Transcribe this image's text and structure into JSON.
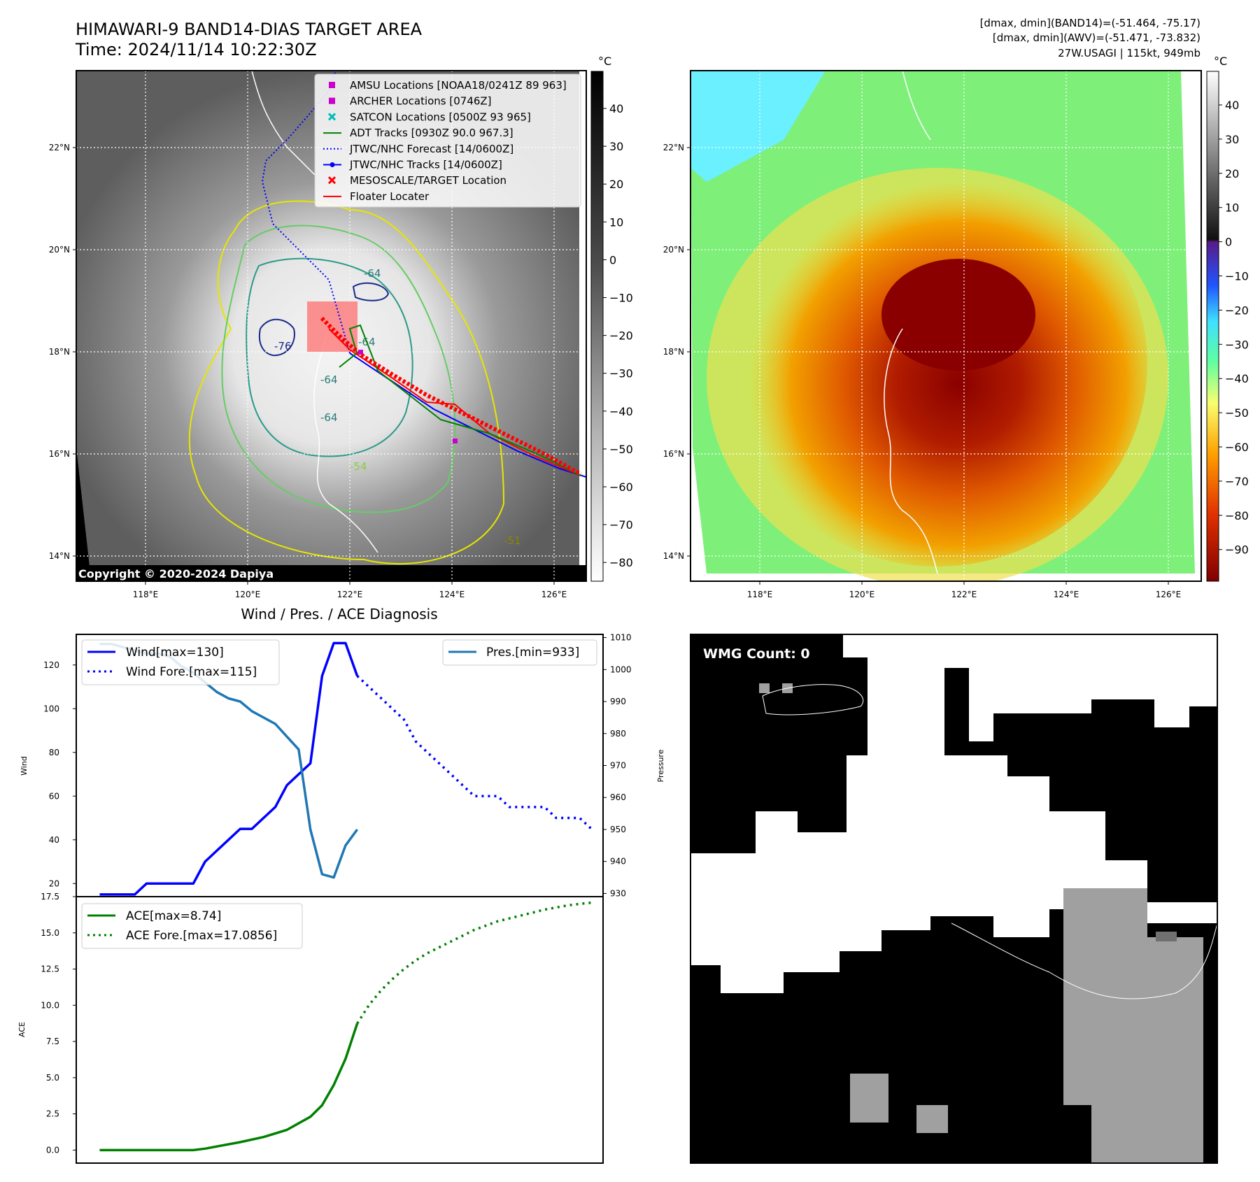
{
  "header": {
    "title": "HIMAWARI-9 BAND14-DIAS TARGET AREA",
    "time": "Time: 2024/11/14 10:22:30Z",
    "stats_band14": "[dmax, dmin](BAND14)=(-51.464, -75.17)",
    "stats_awv": "[dmax, dmin](AWV)=(-51.471, -73.832)",
    "storm": "27W.USAGI | 115kt, 949mb"
  },
  "map": {
    "lon_ticks": [
      "118°E",
      "120°E",
      "122°E",
      "124°E",
      "126°E"
    ],
    "lat_ticks": [
      "22°N",
      "20°N",
      "18°N",
      "16°N",
      "14°N"
    ],
    "copyright": "Copyright © 2020-2024 Dapiya",
    "contour_labels": [
      "-64",
      "-64",
      "-64",
      "-64",
      "-76",
      "-54",
      "-51"
    ],
    "legend": [
      {
        "label": "AMSU Locations [NOAA18/0241Z 89 963]",
        "color": "#cc00cc"
      },
      {
        "label": "ARCHER Locations [0746Z]",
        "color": "#cc00cc"
      },
      {
        "label": "SATCON Locations [0500Z 93 965]",
        "color": "#00bbbb"
      },
      {
        "label": "ADT Tracks [0930Z 90.0 967.3]",
        "color": "#008000"
      },
      {
        "label": "JTWC/NHC Forecast [14/0600Z]",
        "color": "#0000ff"
      },
      {
        "label": "JTWC/NHC Tracks [14/0600Z]",
        "color": "#0000ff"
      },
      {
        "label": "MESOSCALE/TARGET Location",
        "color": "#ff0000"
      },
      {
        "label": "Floater Locater",
        "color": "#ff0000"
      }
    ]
  },
  "colorbar_gray": {
    "unit": "°C",
    "ticks": [
      "40",
      "30",
      "20",
      "10",
      "0",
      "−10",
      "−20",
      "−30",
      "−40",
      "−50",
      "−60",
      "−70",
      "−80"
    ]
  },
  "colorbar_color": {
    "unit": "°C",
    "ticks": [
      "40",
      "30",
      "20",
      "10",
      "0",
      "−10",
      "−20",
      "−30",
      "−40",
      "−50",
      "−60",
      "−70",
      "−80",
      "−90"
    ]
  },
  "diagnosis_title": "Wind / Pres. / ACE Diagnosis",
  "wmg": {
    "label": "WMG Count: 0"
  },
  "chart_data": [
    {
      "type": "line",
      "title": "Wind / Pres. / ACE Diagnosis",
      "ylabel": "Wind",
      "y2label": "Pressure",
      "ylim": [
        14,
        134
      ],
      "y2lim": [
        929,
        1011
      ],
      "xlim": [
        -2,
        43
      ],
      "yticks": [
        20,
        40,
        60,
        80,
        100,
        120
      ],
      "y2ticks": [
        930,
        940,
        950,
        960,
        970,
        980,
        990,
        1000,
        1010
      ],
      "series": [
        {
          "name": "Wind[max=130]",
          "color": "#0000ff",
          "style": "solid",
          "x": [
            0,
            2,
            3,
            4,
            5,
            6,
            8,
            9,
            10,
            11,
            12,
            13,
            14,
            15,
            16,
            17,
            18,
            19,
            20,
            21,
            22
          ],
          "y": [
            15,
            15,
            15,
            20,
            20,
            20,
            20,
            30,
            35,
            40,
            45,
            45,
            50,
            55,
            65,
            70,
            75,
            115,
            130,
            130,
            115
          ]
        },
        {
          "name": "Wind Fore.[max=115]",
          "color": "#0000ff",
          "style": "dotted",
          "x": [
            22,
            23,
            24,
            25,
            26,
            27,
            28,
            29,
            30,
            31,
            32,
            33,
            34,
            35,
            36,
            37,
            38,
            39,
            40,
            41,
            42
          ],
          "y": [
            115,
            110,
            105,
            100,
            95,
            85,
            80,
            75,
            70,
            65,
            60,
            60,
            60,
            55,
            55,
            55,
            55,
            50,
            50,
            50,
            45
          ]
        },
        {
          "name": "Pres.[min=933]",
          "color": "#1f77b4",
          "style": "solid",
          "axis": "right",
          "x": [
            0,
            1,
            2,
            3,
            4,
            5,
            6,
            7,
            8,
            9,
            10,
            11,
            12,
            13,
            14,
            15,
            16,
            17,
            18,
            19,
            20,
            21,
            22
          ],
          "y": [
            1008,
            1008,
            1007,
            1006,
            1005,
            1005,
            1004,
            1001,
            999,
            996,
            993,
            991,
            990,
            987,
            985,
            983,
            979,
            975,
            950,
            936,
            935,
            945,
            950
          ]
        }
      ],
      "legend_left": [
        "Wind[max=130]",
        "Wind Fore.[max=115]"
      ],
      "legend_right": [
        "Pres.[min=933]"
      ]
    },
    {
      "type": "line",
      "ylabel": "ACE",
      "ylim": [
        -0.9,
        17.5
      ],
      "xlim": [
        -2,
        43
      ],
      "yticks": [
        0.0,
        2.5,
        5.0,
        7.5,
        10.0,
        12.5,
        15.0,
        17.5
      ],
      "ytick_labels": [
        "0.0",
        "2.5",
        "5.0",
        "7.5",
        "10.0",
        "12.5",
        "15.0",
        "17.5"
      ],
      "series": [
        {
          "name": "ACE[max=8.74]",
          "color": "#008000",
          "style": "solid",
          "x": [
            0,
            2,
            4,
            6,
            8,
            9,
            10,
            12,
            14,
            16,
            18,
            19,
            20,
            21,
            22
          ],
          "y": [
            0,
            0,
            0,
            0,
            0,
            0.1,
            0.25,
            0.55,
            0.9,
            1.4,
            2.3,
            3.1,
            4.5,
            6.3,
            8.74
          ]
        },
        {
          "name": "ACE Fore.[max=17.0856]",
          "color": "#008000",
          "style": "dotted",
          "x": [
            22,
            23,
            24,
            25,
            26,
            27,
            28,
            29,
            30,
            31,
            32,
            33,
            34,
            35,
            36,
            37,
            38,
            39,
            40,
            41,
            42
          ],
          "y": [
            8.74,
            10.0,
            11.0,
            11.8,
            12.5,
            13.1,
            13.6,
            14.0,
            14.4,
            14.8,
            15.2,
            15.5,
            15.8,
            16.0,
            16.2,
            16.4,
            16.6,
            16.75,
            16.9,
            17.0,
            17.0856
          ]
        }
      ],
      "legend": [
        "ACE[max=8.74]",
        "ACE Fore.[max=17.0856]"
      ]
    }
  ]
}
